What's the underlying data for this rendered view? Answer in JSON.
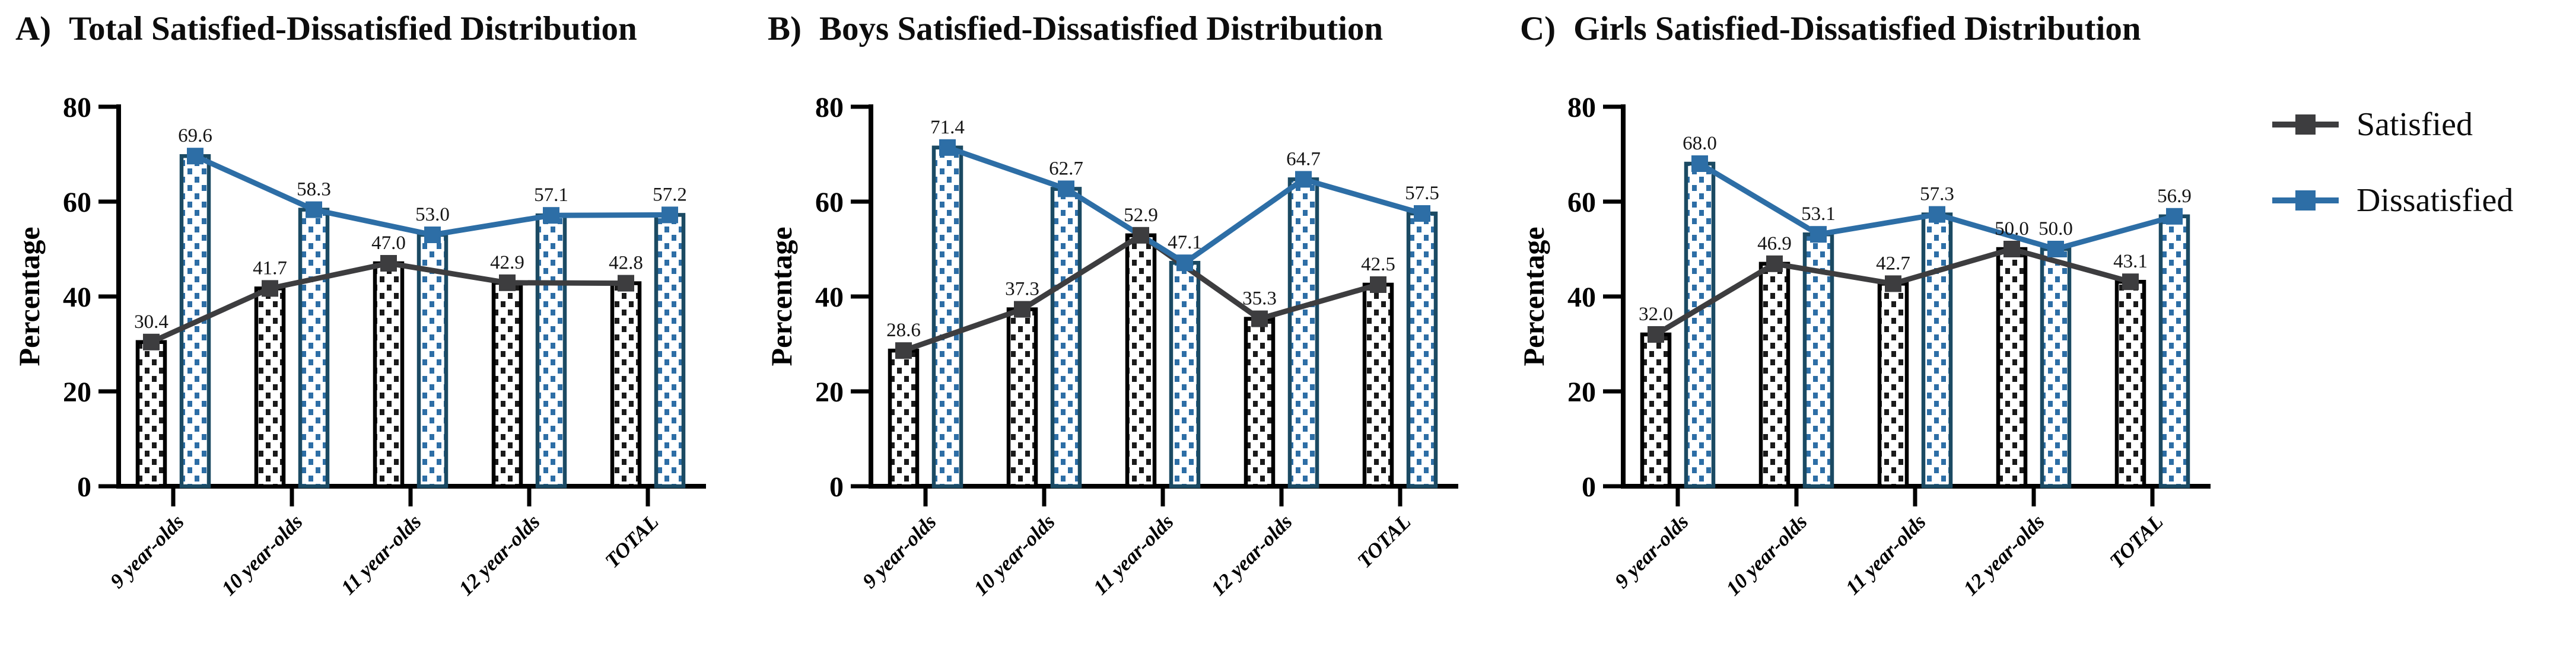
{
  "figure": {
    "ylabel": "Percentage",
    "yticks": [
      0,
      20,
      40,
      60,
      80
    ],
    "ylim": [
      0,
      80
    ],
    "categories": [
      "9 year-olds",
      "10 year-olds",
      "11 year-olds",
      "12 year-olds",
      "TOTAL"
    ],
    "legend": {
      "items": [
        {
          "label": "Satisfied",
          "color": "#3d3d3f"
        },
        {
          "label": "Dissatisfied",
          "color": "#2d6ea6"
        }
      ]
    }
  },
  "colors": {
    "satisfied_line": "#3d3d3f",
    "satisfied_bar_outline": "#000000",
    "satisfied_dots": "#1a1a1a",
    "dissatisfied_line": "#2d6ea6",
    "dissatisfied_bar_outline": "#1b4a63",
    "dissatisfied_dots": "#2d6ea6",
    "axis": "#000000",
    "value_label": "#141414",
    "bar_fill": "#ffffff"
  },
  "chart_data": [
    {
      "type": "bar",
      "panel_label": "A)",
      "title": "Total Satisfied-Dissatisfied Distribution",
      "categories": [
        "9 year-olds",
        "10 year-olds",
        "11 year-olds",
        "12 year-olds",
        "TOTAL"
      ],
      "series": [
        {
          "name": "Satisfied",
          "values": [
            30.4,
            41.7,
            47.0,
            42.9,
            42.8
          ]
        },
        {
          "name": "Dissatisfied",
          "values": [
            69.6,
            58.3,
            53.0,
            57.1,
            57.2
          ]
        }
      ],
      "xlabel": "",
      "ylabel": "Percentage",
      "ylim": [
        0,
        80
      ],
      "grid": false,
      "legend_position": "right-of-figure"
    },
    {
      "type": "bar",
      "panel_label": "B)",
      "title": "Boys Satisfied-Dissatisfied Distribution",
      "categories": [
        "9 year-olds",
        "10 year-olds",
        "11 year-olds",
        "12 year-olds",
        "TOTAL"
      ],
      "series": [
        {
          "name": "Satisfied",
          "values": [
            28.6,
            37.3,
            52.9,
            35.3,
            42.5
          ]
        },
        {
          "name": "Dissatisfied",
          "values": [
            71.4,
            62.7,
            47.1,
            64.7,
            57.5
          ]
        }
      ],
      "xlabel": "",
      "ylabel": "Percentage",
      "ylim": [
        0,
        80
      ],
      "grid": false,
      "legend_position": "right-of-figure"
    },
    {
      "type": "bar",
      "panel_label": "C)",
      "title": "Girls Satisfied-Dissatisfied Distribution",
      "categories": [
        "9 year-olds",
        "10 year-olds",
        "11 year-olds",
        "12 year-olds",
        "TOTAL"
      ],
      "series": [
        {
          "name": "Satisfied",
          "values": [
            32.0,
            46.9,
            42.7,
            50.0,
            43.1
          ]
        },
        {
          "name": "Dissatisfied",
          "values": [
            68.0,
            53.1,
            57.3,
            50.0,
            56.9
          ]
        }
      ],
      "xlabel": "",
      "ylabel": "Percentage",
      "ylim": [
        0,
        80
      ],
      "grid": false,
      "legend_position": "right-of-figure"
    }
  ]
}
